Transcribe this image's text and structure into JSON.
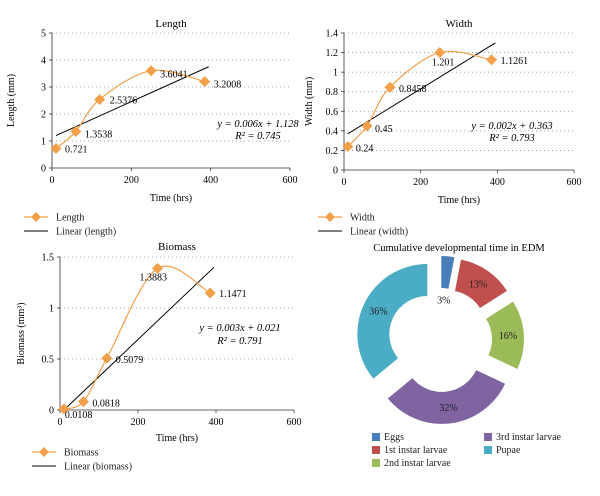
{
  "chart_data": [
    {
      "type": "line",
      "title": "Length",
      "xlabel": "Time (hrs)",
      "ylabel": "Length (mm)",
      "xlim": [
        0,
        600
      ],
      "ylim": [
        0,
        5
      ],
      "xticks": [
        "0",
        "200",
        "400",
        "600"
      ],
      "yticks": [
        "0",
        "1",
        "2",
        "3",
        "4",
        "5"
      ],
      "grid": "horizontal-dotted",
      "series": [
        {
          "name": "Length",
          "style": "smooth-line-diamond-markers",
          "color": "#f2a04a",
          "x": [
            10,
            60,
            120,
            250,
            385
          ],
          "y": [
            0.721,
            1.3538,
            2.5376,
            3.6041,
            3.2008
          ],
          "labels": [
            "0.721",
            "1.3538",
            "2.5376",
            "3.6041",
            "3.2008"
          ]
        },
        {
          "name": "Linear (length)",
          "style": "straight-line",
          "color": "#000000",
          "x": [
            10,
            395
          ],
          "y": [
            1.2,
            3.75
          ]
        }
      ],
      "equation": "y = 0.006x + 1.128",
      "r2": "R² = 0.745",
      "legend_position": "below"
    },
    {
      "type": "line",
      "title": "Width",
      "xlabel": "Time (hrs)",
      "ylabel": "Width (mm)",
      "xlim": [
        0,
        600
      ],
      "ylim": [
        0,
        1.4
      ],
      "xticks": [
        "0",
        "200",
        "400",
        "600"
      ],
      "yticks": [
        "0",
        "0.2",
        "0.4",
        "0.6",
        "0.8",
        "1",
        "1.2",
        "1.4"
      ],
      "grid": "horizontal-dotted",
      "series": [
        {
          "name": "Width",
          "style": "smooth-line-diamond-markers",
          "color": "#f2a04a",
          "x": [
            10,
            60,
            120,
            250,
            385
          ],
          "y": [
            0.24,
            0.45,
            0.8458,
            1.201,
            1.1261
          ],
          "labels": [
            "0.24",
            "0.45",
            "0.8458",
            "1.201",
            "1.1261"
          ]
        },
        {
          "name": "Linear (width)",
          "style": "straight-line",
          "color": "#000000",
          "x": [
            10,
            395
          ],
          "y": [
            0.37,
            1.3
          ]
        }
      ],
      "equation": "y = 0.002x + 0.363",
      "r2": "R² = 0.793",
      "legend_position": "below"
    },
    {
      "type": "line",
      "title": "Biomass",
      "xlabel": "Time (hrs)",
      "ylabel": "Biomass (mm³)",
      "xlim": [
        0,
        600
      ],
      "ylim": [
        0,
        1.5
      ],
      "xticks": [
        "0",
        "200",
        "400",
        "600"
      ],
      "yticks": [
        "0",
        "0.5",
        "1",
        "1.5"
      ],
      "grid": "horizontal-dotted",
      "series": [
        {
          "name": "Biomass",
          "style": "smooth-line-diamond-markers",
          "color": "#f2a04a",
          "x": [
            10,
            60,
            120,
            250,
            385
          ],
          "y": [
            0.0108,
            0.0818,
            0.5079,
            1.3883,
            1.1471
          ],
          "labels": [
            "0.0108",
            "0.0818",
            "0.5079",
            "1.3883",
            "1.1471"
          ]
        },
        {
          "name": "Linear (biomass)",
          "style": "straight-line",
          "color": "#000000",
          "x": [
            10,
            395
          ],
          "y": [
            0.0,
            1.4
          ]
        }
      ],
      "equation": "y = 0.003x + 0.021",
      "r2": "R² = 0.791",
      "legend_position": "below"
    },
    {
      "type": "pie",
      "style": "exploded-donut",
      "title": "Cumulative developmental time in EDM",
      "categories": [
        "Eggs",
        "1st instar larvae",
        "2nd instar larvae",
        "3rd instar larvae",
        "Pupae"
      ],
      "values": [
        3,
        13,
        16,
        32,
        36
      ],
      "labels": [
        "3%",
        "13%",
        "16%",
        "32%",
        "36%"
      ],
      "colors": [
        "#4a7ebb",
        "#c0504d",
        "#9bbb59",
        "#8064a2",
        "#4bacc6"
      ],
      "legend_position": "bottom"
    }
  ]
}
